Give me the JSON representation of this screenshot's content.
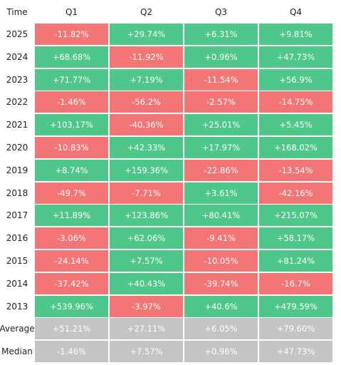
{
  "header": {
    "time_label": "Time",
    "columns": [
      "Q1",
      "Q2",
      "Q3",
      "Q4"
    ]
  },
  "colors": {
    "positive": "#4fc78a",
    "negative": "#f47575",
    "summary": "#c4c4c4",
    "text_on_cell": "#ffffff",
    "label_text": "#222222"
  },
  "chart_data": {
    "type": "heatmap",
    "title": "",
    "columns": [
      "Q1",
      "Q2",
      "Q3",
      "Q4"
    ],
    "rows": [
      {
        "label": "2025",
        "values": [
          -11.82,
          29.74,
          6.31,
          9.81
        ],
        "display": [
          "-11.82%",
          "+29.74%",
          "+6.31%",
          "+9.81%"
        ]
      },
      {
        "label": "2024",
        "values": [
          68.68,
          -11.92,
          0.96,
          47.73
        ],
        "display": [
          "+68.68%",
          "-11.92%",
          "+0.96%",
          "+47.73%"
        ]
      },
      {
        "label": "2023",
        "values": [
          71.77,
          7.19,
          -11.54,
          56.9
        ],
        "display": [
          "+71.77%",
          "+7.19%",
          "-11.54%",
          "+56.9%"
        ]
      },
      {
        "label": "2022",
        "values": [
          -1.46,
          -56.2,
          -2.57,
          -14.75
        ],
        "display": [
          "-1.46%",
          "-56.2%",
          "-2.57%",
          "-14.75%"
        ]
      },
      {
        "label": "2021",
        "values": [
          103.17,
          -40.36,
          25.01,
          5.45
        ],
        "display": [
          "+103.17%",
          "-40.36%",
          "+25.01%",
          "+5.45%"
        ]
      },
      {
        "label": "2020",
        "values": [
          -10.83,
          42.33,
          17.97,
          168.02
        ],
        "display": [
          "-10.83%",
          "+42.33%",
          "+17.97%",
          "+168.02%"
        ]
      },
      {
        "label": "2019",
        "values": [
          8.74,
          159.36,
          -22.86,
          -13.54
        ],
        "display": [
          "+8.74%",
          "+159.36%",
          "-22.86%",
          "-13.54%"
        ]
      },
      {
        "label": "2018",
        "values": [
          -49.7,
          -7.71,
          3.61,
          -42.16
        ],
        "display": [
          "-49.7%",
          "-7.71%",
          "+3.61%",
          "-42.16%"
        ]
      },
      {
        "label": "2017",
        "values": [
          11.89,
          123.86,
          80.41,
          215.07
        ],
        "display": [
          "+11.89%",
          "+123.86%",
          "+80.41%",
          "+215.07%"
        ]
      },
      {
        "label": "2016",
        "values": [
          -3.06,
          62.06,
          -9.41,
          58.17
        ],
        "display": [
          "-3.06%",
          "+62.06%",
          "-9.41%",
          "+58.17%"
        ]
      },
      {
        "label": "2015",
        "values": [
          -24.14,
          7.57,
          -10.05,
          81.24
        ],
        "display": [
          "-24.14%",
          "+7.57%",
          "-10.05%",
          "+81.24%"
        ]
      },
      {
        "label": "2014",
        "values": [
          -37.42,
          40.43,
          -39.74,
          -16.7
        ],
        "display": [
          "-37.42%",
          "+40.43%",
          "-39.74%",
          "-16.7%"
        ]
      },
      {
        "label": "2013",
        "values": [
          539.96,
          -3.97,
          40.6,
          479.59
        ],
        "display": [
          "+539.96%",
          "-3.97%",
          "+40.6%",
          "+479.59%"
        ]
      }
    ],
    "summary_rows": [
      {
        "label": "Average",
        "values": [
          51.21,
          27.11,
          6.05,
          79.6
        ],
        "display": [
          "+51.21%",
          "+27.11%",
          "+6.05%",
          "+79.60%"
        ]
      },
      {
        "label": "Median",
        "values": [
          -1.46,
          7.57,
          0.96,
          47.73
        ],
        "display": [
          "-1.46%",
          "+7.57%",
          "+0.96%",
          "+47.73%"
        ]
      }
    ]
  }
}
